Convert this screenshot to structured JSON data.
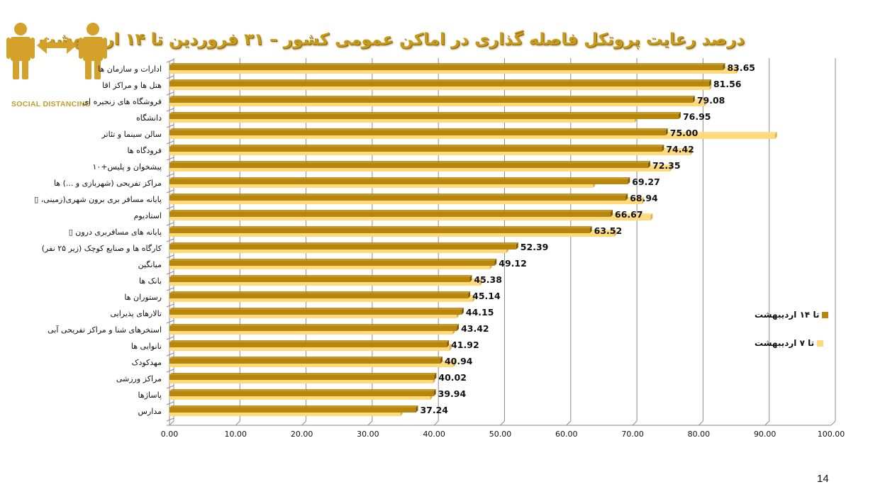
{
  "slide": {
    "title": "درصد رعایت پروتکل فاصله گذاری در اماکن عمومی کشور – ۳۱ فروردین تا ۱۴ اردیبهشت",
    "page_number": "14",
    "logo": {
      "icon": "social-distancing-icon",
      "caption": "SOCIAL DISTANCING",
      "color": "#d4a22a"
    }
  },
  "legend": [
    {
      "label": "تا ۱۴ اردیبهشت",
      "color": "#b8860b"
    },
    {
      "label": "تا ۷ اردیبهشت",
      "color": "#ffd97a"
    }
  ],
  "chart_data": {
    "type": "bar",
    "orientation": "horizontal",
    "title": "درصد رعایت پروتکل فاصله گذاری در اماکن عمومی کشور – ۳۱ فروردین تا ۱۴ اردیبهشت",
    "xlabel": "",
    "ylabel": "",
    "xlim": [
      0,
      100
    ],
    "x_ticks": [
      "0.00",
      "10.00",
      "20.00",
      "30.00",
      "40.00",
      "50.00",
      "60.00",
      "70.00",
      "80.00",
      "90.00",
      "100.00"
    ],
    "grid": true,
    "legend_position": "right",
    "categories": [
      "ادارات و سازمان ها",
      "هتل ها و مراکز اقا",
      "فروشگاه های زنجیره ای",
      "دانشگاه",
      "سالن سینما و تئاتر",
      "فرودگاه ها",
      "پیشخوان و پلیس+۱۰",
      "مراکز تفریحی (شهربازی و ...) ها",
      "پایانه مسافر بری برون شهری(زمینی، ▯",
      "استادیوم",
      "پایانه های مسافربری درون ▯",
      "کارگاه ها و صنایع کوچک (زیر ۲۵ نفر)",
      "میانگین",
      "بانک ها",
      "رستوران ها",
      "تالارهای پذیرایی",
      "استخرهای شنا و مراکز تفریحی آبی",
      "نانوایی ها",
      "مهدکودک",
      "مراکز ورزشی",
      "پاساژها",
      "مدارس"
    ],
    "series": [
      {
        "name": "تا ۱۴ اردیبهشت",
        "color": "#b8860b",
        "values": [
          83.65,
          81.56,
          79.08,
          76.95,
          75.0,
          74.42,
          72.35,
          69.27,
          68.94,
          66.67,
          63.52,
          52.39,
          49.12,
          45.38,
          45.14,
          44.15,
          43.42,
          41.92,
          40.94,
          40.02,
          39.94,
          37.24
        ],
        "labels": [
          "83.65",
          "81.56",
          "79.08",
          "76.95",
          "75.00",
          "74.42",
          "72.35",
          "69.27",
          "68.94",
          "66.67",
          "63.52",
          "52.39",
          "49.12",
          "45.38",
          "45.14",
          "44.15",
          "43.42",
          "41.92",
          "40.94",
          "40.02",
          "39.94",
          "37.24"
        ]
      },
      {
        "name": "تا ۷ اردیبهشت",
        "color": "#ffd97a",
        "values": [
          85.6,
          81.6,
          80.8,
          70.3,
          91.5,
          78.7,
          75.6,
          64.0,
          71.4,
          72.7,
          67.2,
          50.9,
          48.4,
          46.9,
          45.8,
          43.4,
          42.8,
          42.3,
          42.9,
          39.8,
          39.4,
          34.9
        ]
      }
    ]
  }
}
